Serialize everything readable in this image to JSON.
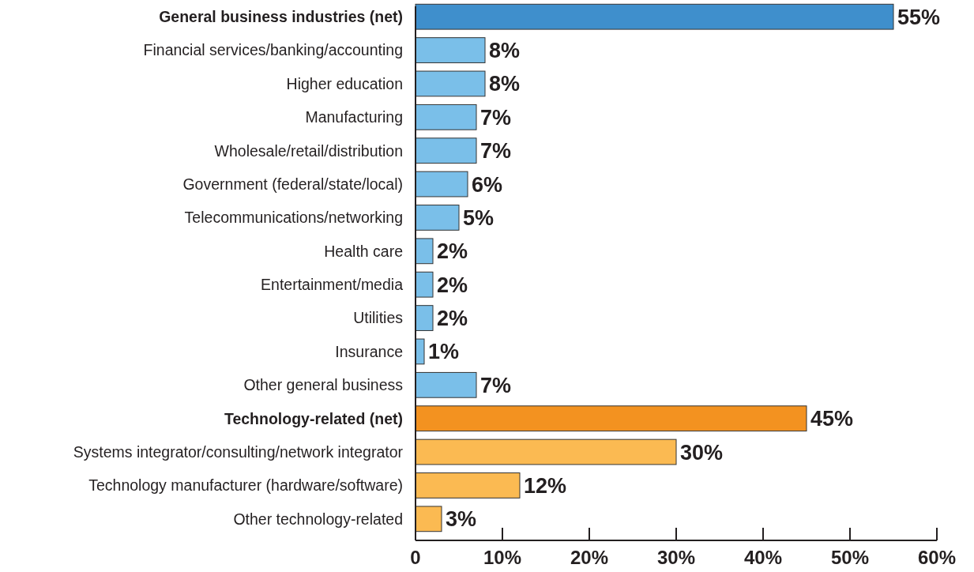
{
  "chart_data": {
    "type": "bar",
    "orientation": "horizontal",
    "categories": [
      "General business industries (net)",
      "Financial services/banking/accounting",
      "Higher education",
      "Manufacturing",
      "Wholesale/retail/distribution",
      "Government (federal/state/local)",
      "Telecommunications/networking",
      "Health care",
      "Entertainment/media",
      "Utilities",
      "Insurance",
      "Other general business",
      "Technology-related (net)",
      "Systems integrator/consulting/network integrator",
      "Technology manufacturer (hardware/software)",
      "Other technology-related"
    ],
    "values": [
      55,
      8,
      8,
      7,
      7,
      6,
      5,
      2,
      2,
      2,
      1,
      7,
      45,
      30,
      12,
      3
    ],
    "colors": [
      "#3f8fcc",
      "#7abfe9",
      "#7abfe9",
      "#7abfe9",
      "#7abfe9",
      "#7abfe9",
      "#7abfe9",
      "#7abfe9",
      "#7abfe9",
      "#7abfe9",
      "#7abfe9",
      "#7abfe9",
      "#f39220",
      "#fbba52",
      "#fbba52",
      "#fbba52"
    ],
    "value_labels": [
      "55%",
      "8%",
      "8%",
      "7%",
      "7%",
      "6%",
      "5%",
      "2%",
      "2%",
      "2%",
      "1%",
      "7%",
      "45%",
      "30%",
      "12%",
      "3%"
    ],
    "xlim": [
      0,
      60
    ],
    "xticks": [
      0,
      {
        "value": 10,
        "label": "10%"
      },
      {
        "value": 20,
        "label": "20%"
      },
      {
        "value": 30,
        "label": "30%"
      },
      {
        "value": 40,
        "label": "40%"
      },
      {
        "value": 50,
        "label": "50%"
      },
      {
        "value": 60,
        "label": "60%"
      }
    ],
    "grid": false
  }
}
